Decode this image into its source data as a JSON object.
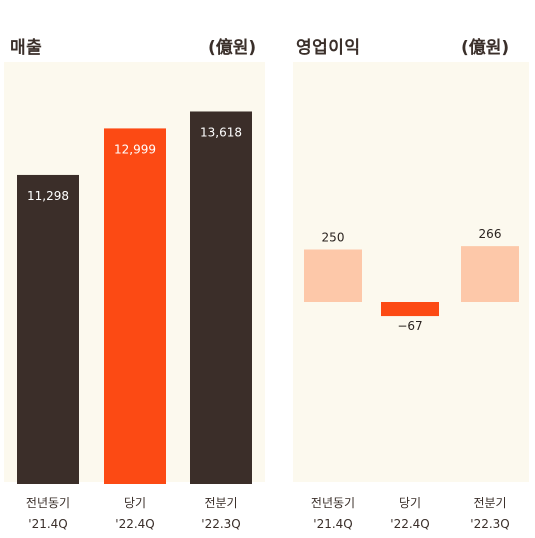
{
  "panels": [
    {
      "title": "매출",
      "unit": "(億원)"
    },
    {
      "title": "영업이익",
      "unit": "(億원)"
    }
  ],
  "chart_data": [
    {
      "type": "bar",
      "title": "매출",
      "unit": "(億원)",
      "categories": [
        "전년동기",
        "당기",
        "전분기"
      ],
      "periods": [
        "'21.4Q",
        "'22.4Q",
        "'22.3Q"
      ],
      "values": [
        11298,
        12999,
        13618
      ],
      "value_labels": [
        "11,298",
        "12,999",
        "13,618"
      ],
      "colors": [
        "#3b2e29",
        "#fc4a14",
        "#3b2e29"
      ],
      "ylim": [
        0,
        15500
      ]
    },
    {
      "type": "bar",
      "title": "영업이익",
      "unit": "(億원)",
      "categories": [
        "전년동기",
        "당기",
        "전분기"
      ],
      "periods": [
        "'21.4Q",
        "'22.4Q",
        "'22.3Q"
      ],
      "values": [
        250,
        -67,
        266
      ],
      "value_labels": [
        "250",
        "−67",
        "266"
      ],
      "colors": [
        "#fdc8a9",
        "#fc4a14",
        "#fdc8a9"
      ]
    }
  ]
}
